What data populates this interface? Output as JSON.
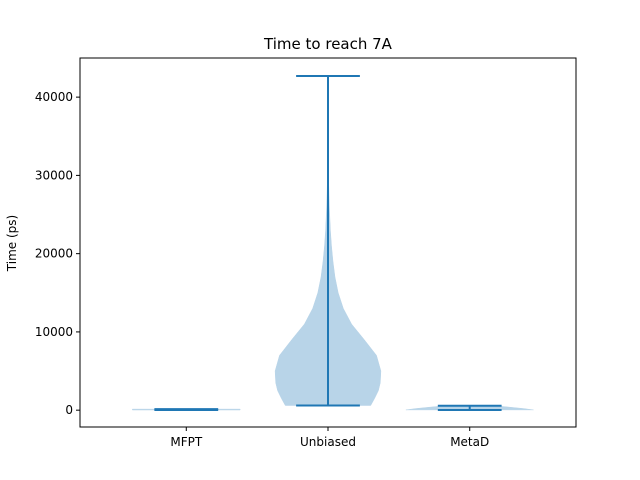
{
  "chart_data": {
    "type": "violin",
    "title": "Time to reach 7A",
    "xlabel": "",
    "ylabel": "Time (ps)",
    "categories": [
      "MFPT",
      "Unbiased",
      "MetaD"
    ],
    "ylim": [
      -2150,
      45000
    ],
    "yticks": [
      0,
      10000,
      20000,
      30000,
      40000
    ],
    "ytick_labels": [
      "0",
      "10000",
      "20000",
      "30000",
      "40000"
    ],
    "violin_color": "#b8d4e8",
    "line_color": "#1f77b4",
    "violins": [
      {
        "category": "MFPT",
        "min": 20,
        "max": 140,
        "density": [
          [
            20,
            1.0
          ],
          [
            80,
            1.0
          ],
          [
            140,
            1.0
          ]
        ],
        "max_halfwidth": 0.38
      },
      {
        "category": "Unbiased",
        "min": 600,
        "max": 42700,
        "density": [
          [
            600,
            0.67
          ],
          [
            1500,
            0.73
          ],
          [
            2500,
            0.79
          ],
          [
            3500,
            0.82
          ],
          [
            5000,
            0.83
          ],
          [
            7000,
            0.76
          ],
          [
            9000,
            0.57
          ],
          [
            11000,
            0.37
          ],
          [
            13000,
            0.24
          ],
          [
            15000,
            0.16
          ],
          [
            17000,
            0.11
          ],
          [
            19000,
            0.078
          ],
          [
            21000,
            0.055
          ],
          [
            23000,
            0.038
          ],
          [
            25000,
            0.026
          ],
          [
            27000,
            0.017
          ],
          [
            29000,
            0.011
          ],
          [
            32000,
            0.007
          ],
          [
            35000,
            0.0045
          ],
          [
            38000,
            0.003
          ],
          [
            40000,
            0.0025
          ],
          [
            42700,
            0.002
          ]
        ],
        "max_halfwidth": 0.45
      },
      {
        "category": "MetaD",
        "min": 30,
        "max": 560,
        "density": [
          [
            30,
            1.0
          ],
          [
            200,
            0.85
          ],
          [
            400,
            0.6
          ],
          [
            560,
            0.4
          ]
        ],
        "max_halfwidth": 0.45
      }
    ]
  }
}
